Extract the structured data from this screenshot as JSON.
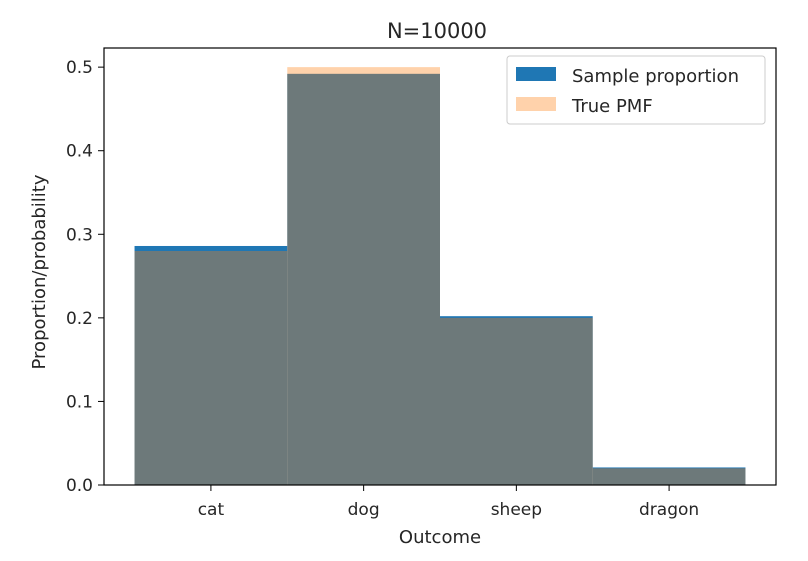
{
  "chart_data": {
    "type": "bar",
    "title": "N=10000",
    "xlabel": "Outcome",
    "ylabel": "Proportion/probability",
    "categories": [
      "cat",
      "dog",
      "sheep",
      "dragon"
    ],
    "ylim": [
      0,
      0.5229
    ],
    "yticks": [
      0.0,
      0.1,
      0.2,
      0.3,
      0.4,
      0.5
    ],
    "ytick_labels": [
      "0.0",
      "0.1",
      "0.2",
      "0.3",
      "0.4",
      "0.5"
    ],
    "grid": false,
    "legend_position": "top-right",
    "series": [
      {
        "name": "Sample proportion",
        "values": [
          0.286,
          0.492,
          0.202,
          0.021
        ],
        "color": "#1f77b4",
        "opacity": 1.0
      },
      {
        "name": "True PMF",
        "values": [
          0.28,
          0.5,
          0.2,
          0.02
        ],
        "color": "#ff7f0e",
        "opacity": 0.35
      }
    ]
  }
}
